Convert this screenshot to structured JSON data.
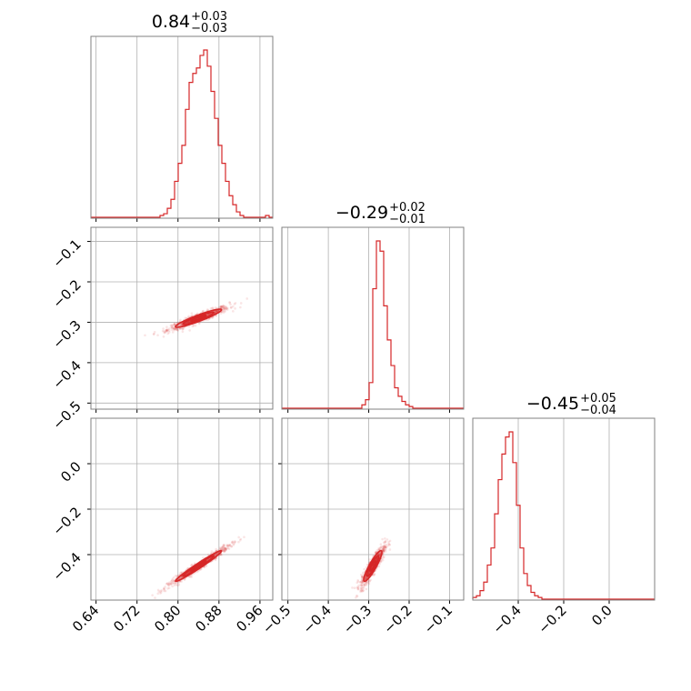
{
  "chart_data": {
    "type": "corner",
    "color": "#d62728",
    "parameters": [
      {
        "median": "0.84",
        "plus": "+0.03",
        "minus": "−0.03",
        "range": [
          0.63,
          0.985
        ]
      },
      {
        "median": "−0.29",
        "plus": "+0.02",
        "minus": "−0.01",
        "range": [
          -0.515,
          -0.065
        ]
      },
      {
        "median": "−0.45",
        "plus": "+0.05",
        "minus": "−0.04",
        "range": [
          -0.6,
          0.2
        ]
      }
    ],
    "ticks": [
      {
        "values": [
          0.64,
          0.72,
          0.8,
          0.88,
          0.96
        ],
        "labels": [
          "0.64",
          "0.72",
          "0.80",
          "0.88",
          "0.96"
        ]
      },
      {
        "values": [
          -0.5,
          -0.4,
          -0.3,
          -0.2,
          -0.1
        ],
        "labels": [
          "−0.5",
          "−0.4",
          "−0.3",
          "−0.2",
          "−0.1"
        ]
      },
      {
        "values": [
          -0.4,
          -0.2,
          0.0
        ],
        "labels": [
          "−0.4",
          "−0.2",
          "0.0"
        ]
      }
    ],
    "histograms": [
      {
        "edges_range": [
          0.63,
          0.985
        ],
        "bins": 50,
        "counts": [
          0,
          0,
          0,
          0,
          0,
          0,
          0,
          0,
          0,
          0,
          0,
          0,
          0,
          0,
          0,
          0,
          0,
          0,
          0,
          0.01,
          0.02,
          0.05,
          0.1,
          0.2,
          0.3,
          0.4,
          0.6,
          0.75,
          0.8,
          0.83,
          0.9,
          0.93,
          0.84,
          0.7,
          0.55,
          0.4,
          0.3,
          0.2,
          0.12,
          0.07,
          0.03,
          0.01,
          0,
          0,
          0,
          0,
          0,
          0,
          0.01,
          0
        ]
      },
      {
        "edges_range": [
          -0.515,
          -0.065
        ],
        "bins": 50,
        "counts": [
          0,
          0,
          0,
          0,
          0,
          0,
          0,
          0,
          0,
          0,
          0,
          0,
          0,
          0,
          0,
          0,
          0,
          0,
          0,
          0,
          0,
          0,
          0.02,
          0.05,
          0.15,
          0.7,
          0.98,
          0.92,
          0.6,
          0.4,
          0.25,
          0.12,
          0.07,
          0.04,
          0.02,
          0.01,
          0,
          0,
          0,
          0,
          0,
          0,
          0,
          0,
          0,
          0,
          0,
          0,
          0,
          0
        ]
      },
      {
        "edges_range": [
          -0.6,
          0.2
        ],
        "bins": 50,
        "counts": [
          0.01,
          0.02,
          0.05,
          0.1,
          0.2,
          0.3,
          0.5,
          0.7,
          0.85,
          0.95,
          0.98,
          0.8,
          0.55,
          0.3,
          0.15,
          0.08,
          0.04,
          0.02,
          0.01,
          0,
          0,
          0,
          0,
          0,
          0,
          0,
          0,
          0,
          0,
          0,
          0,
          0,
          0,
          0,
          0,
          0,
          0,
          0,
          0,
          0,
          0,
          0,
          0,
          0,
          0,
          0,
          0,
          0,
          0,
          0
        ]
      }
    ],
    "correlations": [
      {
        "x_param": 0,
        "y_param": 1,
        "mean": [
          0.84,
          -0.29
        ],
        "sd": [
          0.03,
          0.015
        ],
        "rho": 0.93
      },
      {
        "x_param": 0,
        "y_param": 2,
        "mean": [
          0.84,
          -0.45
        ],
        "sd": [
          0.03,
          0.045
        ],
        "rho": 0.98
      },
      {
        "x_param": 1,
        "y_param": 2,
        "mean": [
          -0.29,
          -0.45
        ],
        "sd": [
          0.015,
          0.045
        ],
        "rho": 0.9
      }
    ],
    "levels": [
      0.5,
      1.0,
      1.5
    ],
    "grid": true
  }
}
